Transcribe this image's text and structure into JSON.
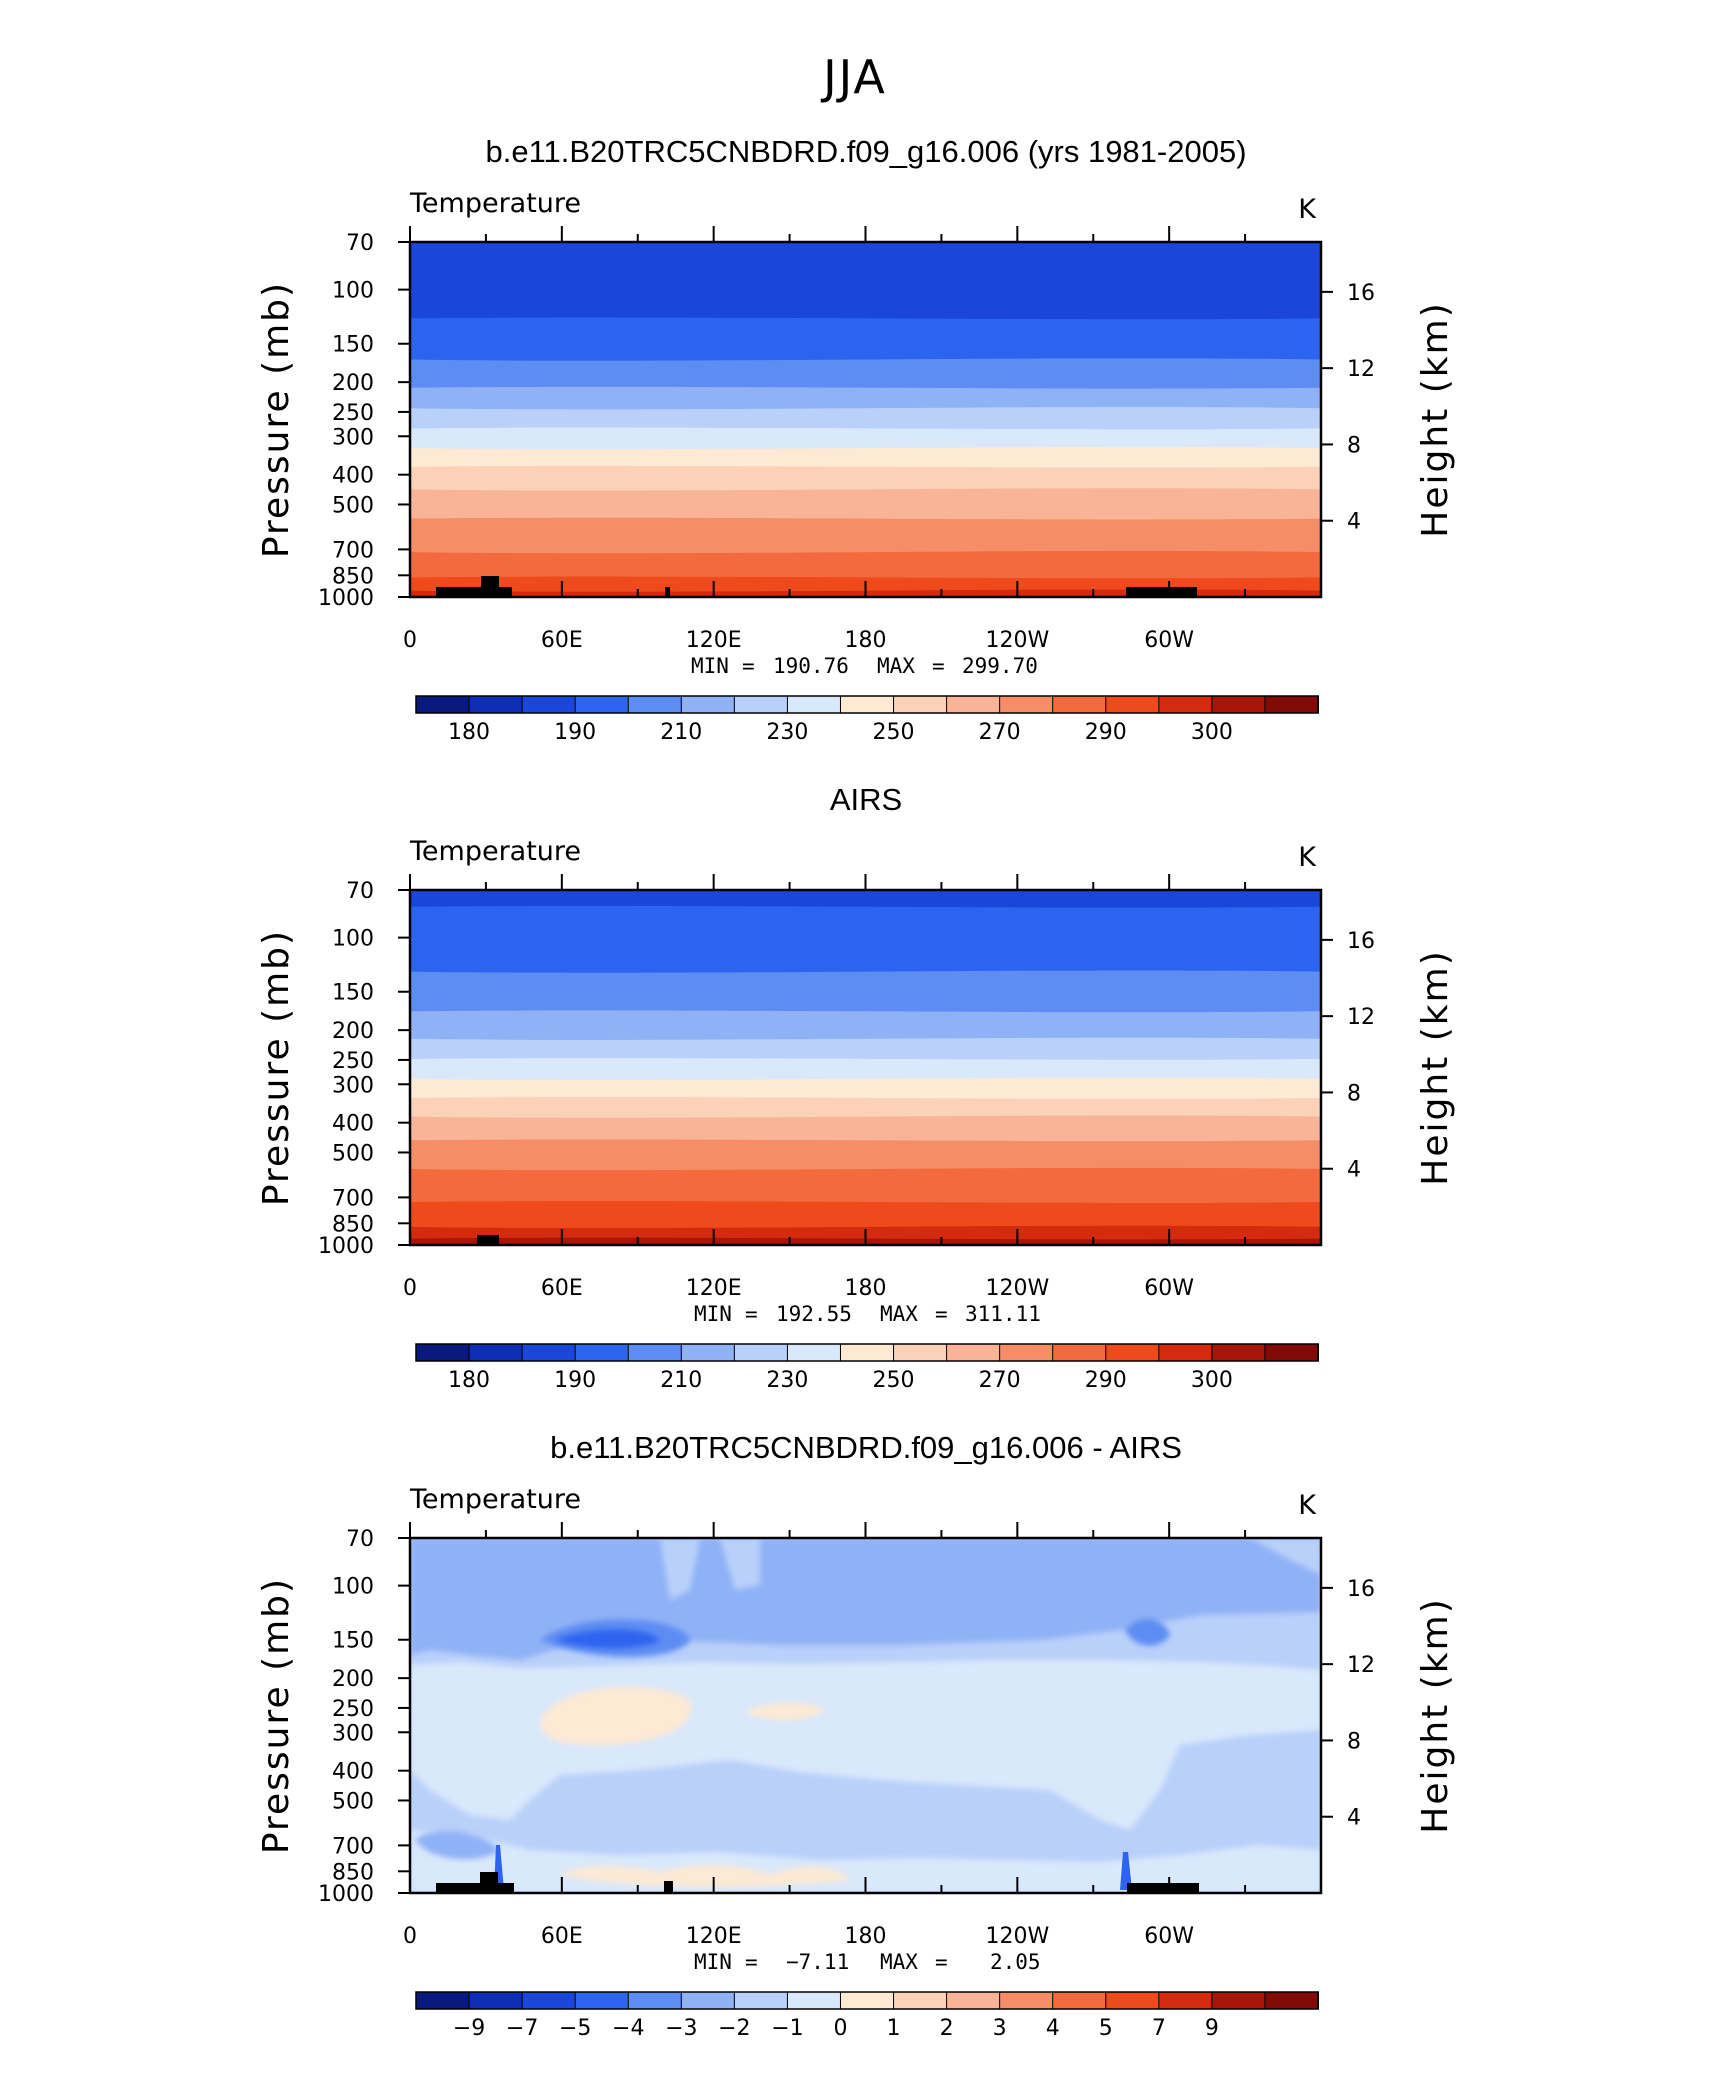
{
  "figure_title": "JJA",
  "palette": [
    "#0a1a7c",
    "#0d2fb5",
    "#1a47d9",
    "#2d64ef",
    "#5d8cf3",
    "#8fb1f6",
    "#b9d0fa",
    "#d9e8fb",
    "#fde9d4",
    "#fbd1b7",
    "#f9b497",
    "#f58e67",
    "#f36a3e",
    "#ef4a1c",
    "#d42a0d",
    "#a71408",
    "#800a05"
  ],
  "chart_data": [
    {
      "type": "heatmap",
      "title": "b.e11.B20TRC5CNBDRD.f09_g16.006 (yrs 1981-2005)",
      "left_string": "Temperature",
      "right_string": "K",
      "ylabel": "Pressure (mb)",
      "ylabel2": "Height (km)",
      "x_ticks": [
        "0",
        "60E",
        "120E",
        "180",
        "120W",
        "60W"
      ],
      "x_range": [
        0,
        360
      ],
      "y_ticks": [
        "70",
        "100",
        "150",
        "200",
        "250",
        "300",
        "400",
        "500",
        "700",
        "850",
        "1000"
      ],
      "y_range": [
        1000,
        70
      ],
      "y_scale": "log",
      "y2_ticks": [
        "16",
        "12",
        "8",
        "4"
      ],
      "min_label": "MIN",
      "min_value": "190.76",
      "max_label": "MAX",
      "max_value": "299.70",
      "colorbar_labels": [
        "180",
        "190",
        "210",
        "230",
        "250",
        "270",
        "290",
        "300"
      ],
      "levels": [
        70,
        100,
        150,
        200,
        250,
        300,
        400,
        500,
        700,
        850,
        1000
      ],
      "band_colors": [
        2,
        3,
        4,
        5,
        6,
        7,
        8,
        9,
        10,
        11,
        12,
        13,
        14
      ],
      "band_bounds": [
        70,
        125,
        170,
        210,
        245,
        285,
        330,
        380,
        450,
        560,
        720,
        870,
        960,
        1000
      ]
    },
    {
      "type": "heatmap",
      "title": "AIRS",
      "left_string": "Temperature",
      "right_string": "K",
      "ylabel": "Pressure (mb)",
      "ylabel2": "Height (km)",
      "x_ticks": [
        "0",
        "60E",
        "120E",
        "180",
        "120W",
        "60W"
      ],
      "x_range": [
        0,
        360
      ],
      "y_ticks": [
        "70",
        "100",
        "150",
        "200",
        "250",
        "300",
        "400",
        "500",
        "700",
        "850",
        "1000"
      ],
      "y_range": [
        1000,
        70
      ],
      "y_scale": "log",
      "y2_ticks": [
        "16",
        "12",
        "8",
        "4"
      ],
      "min_label": "MIN",
      "min_value": "192.55",
      "max_label": "MAX",
      "max_value": "311.11",
      "colorbar_labels": [
        "180",
        "190",
        "210",
        "230",
        "250",
        "270",
        "290",
        "300"
      ],
      "band_colors": [
        2,
        3,
        4,
        5,
        6,
        7,
        8,
        9,
        10,
        11,
        12,
        13,
        14,
        15
      ],
      "band_bounds": [
        70,
        80,
        130,
        175,
        215,
        250,
        290,
        335,
        385,
        460,
        570,
        730,
        880,
        960,
        1000
      ]
    },
    {
      "type": "heatmap",
      "title": "b.e11.B20TRC5CNBDRD.f09_g16.006 - AIRS",
      "left_string": "Temperature",
      "right_string": "K",
      "ylabel": "Pressure (mb)",
      "ylabel2": "Height (km)",
      "x_ticks": [
        "0",
        "60E",
        "120E",
        "180",
        "120W",
        "60W"
      ],
      "x_range": [
        0,
        360
      ],
      "y_ticks": [
        "70",
        "100",
        "150",
        "200",
        "250",
        "300",
        "400",
        "500",
        "700",
        "850",
        "1000"
      ],
      "y_range": [
        1000,
        70
      ],
      "y_scale": "log",
      "y2_ticks": [
        "16",
        "12",
        "8",
        "4"
      ],
      "min_label": "MIN",
      "min_value": "−7.11",
      "max_label": "MAX",
      "max_value": "2.05",
      "colorbar_labels": [
        "−9",
        "−7",
        "−5",
        "−4",
        "−3",
        "−2",
        "−1",
        "0",
        "1",
        "2",
        "3",
        "4",
        "5",
        "7",
        "9"
      ]
    }
  ]
}
